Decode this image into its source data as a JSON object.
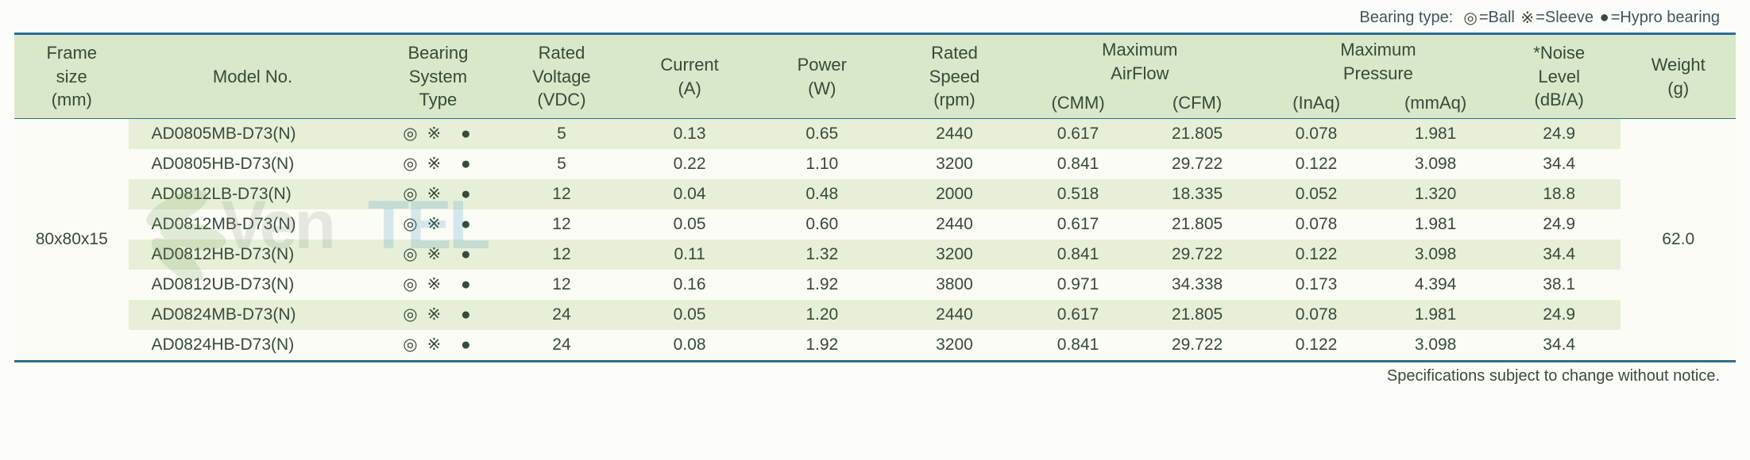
{
  "legend": {
    "label": "Bearing type:",
    "items": [
      {
        "sym": "◎",
        "text": "=Ball"
      },
      {
        "sym": "※",
        "text": "=Sleeve"
      },
      {
        "sym": "●",
        "text": "=Hypro bearing"
      }
    ]
  },
  "table": {
    "columns": {
      "frame": {
        "l1": "Frame",
        "l2": "size",
        "l3": "(mm)"
      },
      "model": {
        "l1": "",
        "l2": "Model No.",
        "l3": ""
      },
      "bearing": {
        "l1": "Bearing",
        "l2": "System",
        "l3": "Type"
      },
      "voltage": {
        "l1": "Rated",
        "l2": "Voltage",
        "l3": "(VDC)"
      },
      "current": {
        "l1": "",
        "l2": "Current",
        "l3": "(A)"
      },
      "power": {
        "l1": "",
        "l2": "Power",
        "l3": "(W)"
      },
      "speed": {
        "l1": "Rated",
        "l2": "Speed",
        "l3": "(rpm)"
      },
      "airflow_group": "Maximum",
      "airflow_group2": "AirFlow",
      "cmm": "(CMM)",
      "cfm": "(CFM)",
      "pressure_group": "Maximum",
      "pressure_group2": "Pressure",
      "inaq": "(InAq)",
      "mmaq": "(mmAq)",
      "noise": {
        "l1": "*Noise",
        "l2": "Level",
        "l3": "(dB/A)"
      },
      "weight": {
        "l1": "",
        "l2": "Weight",
        "l3": "(g)"
      }
    },
    "frame_size": "80x80x15",
    "weight": "62.0",
    "bearing_symbols": [
      "◎",
      "※",
      "●"
    ],
    "rows": [
      {
        "model": "AD0805MB-D73(N)",
        "voltage": "5",
        "current": "0.13",
        "power": "0.65",
        "speed": "2440",
        "cmm": "0.617",
        "cfm": "21.805",
        "inaq": "0.078",
        "mmaq": "1.981",
        "noise": "24.9"
      },
      {
        "model": "AD0805HB-D73(N)",
        "voltage": "5",
        "current": "0.22",
        "power": "1.10",
        "speed": "3200",
        "cmm": "0.841",
        "cfm": "29.722",
        "inaq": "0.122",
        "mmaq": "3.098",
        "noise": "34.4"
      },
      {
        "model": "AD0812LB-D73(N)",
        "voltage": "12",
        "current": "0.04",
        "power": "0.48",
        "speed": "2000",
        "cmm": "0.518",
        "cfm": "18.335",
        "inaq": "0.052",
        "mmaq": "1.320",
        "noise": "18.8"
      },
      {
        "model": "AD0812MB-D73(N)",
        "voltage": "12",
        "current": "0.05",
        "power": "0.60",
        "speed": "2440",
        "cmm": "0.617",
        "cfm": "21.805",
        "inaq": "0.078",
        "mmaq": "1.981",
        "noise": "24.9"
      },
      {
        "model": "AD0812HB-D73(N)",
        "voltage": "12",
        "current": "0.11",
        "power": "1.32",
        "speed": "3200",
        "cmm": "0.841",
        "cfm": "29.722",
        "inaq": "0.122",
        "mmaq": "3.098",
        "noise": "34.4"
      },
      {
        "model": "AD0812UB-D73(N)",
        "voltage": "12",
        "current": "0.16",
        "power": "1.92",
        "speed": "3800",
        "cmm": "0.971",
        "cfm": "34.338",
        "inaq": "0.173",
        "mmaq": "4.394",
        "noise": "38.1"
      },
      {
        "model": "AD0824MB-D73(N)",
        "voltage": "24",
        "current": "0.05",
        "power": "1.20",
        "speed": "2440",
        "cmm": "0.617",
        "cfm": "21.805",
        "inaq": "0.078",
        "mmaq": "1.981",
        "noise": "24.9"
      },
      {
        "model": "AD0824HB-D73(N)",
        "voltage": "24",
        "current": "0.08",
        "power": "1.92",
        "speed": "3200",
        "cmm": "0.841",
        "cfm": "29.722",
        "inaq": "0.122",
        "mmaq": "3.098",
        "noise": "34.4"
      }
    ],
    "row_colors": {
      "even": "#e7efd9",
      "odd": "#fbfcf6"
    }
  },
  "footnote": "Specifications subject to change without notice.",
  "watermark": {
    "text1_color": "#7d8a7d",
    "text2_color": "#2d8bbd",
    "blade_color": "#6d9a4a"
  }
}
